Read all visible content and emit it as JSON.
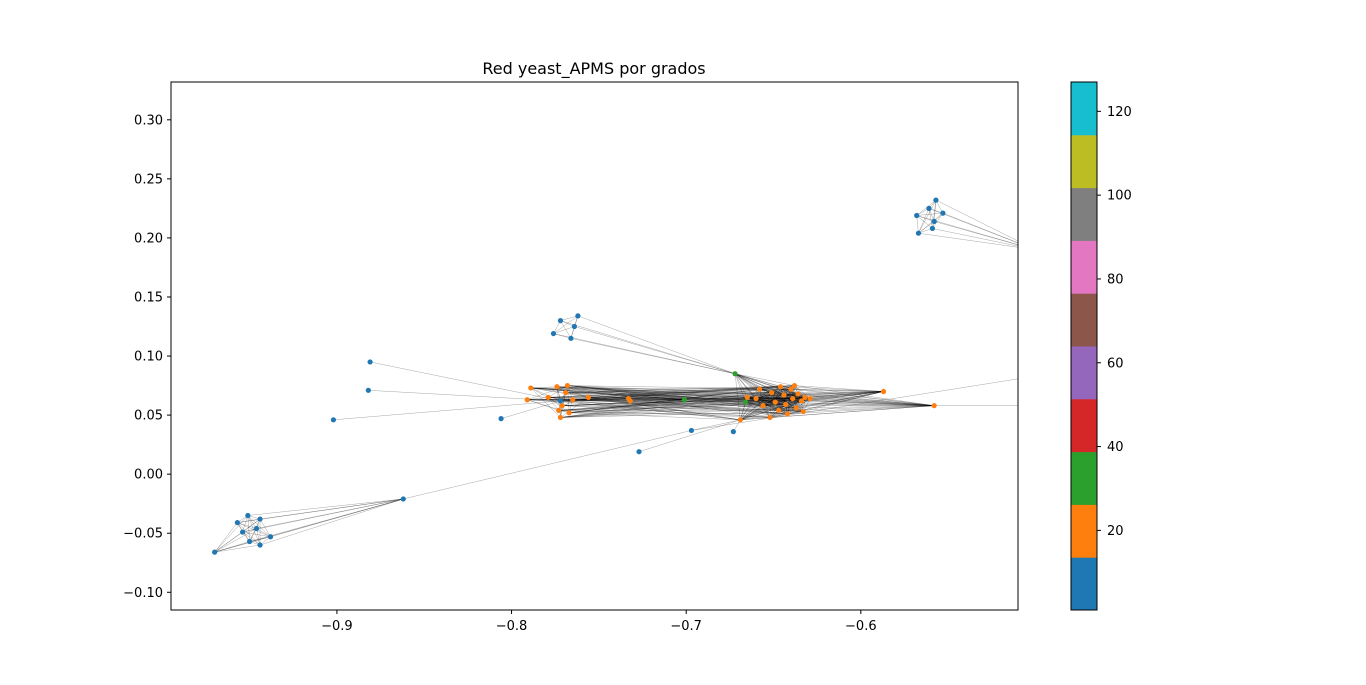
{
  "chart_data": {
    "type": "scatter",
    "subtype": "network-graph",
    "title": "Red yeast_APMS por grados",
    "xlabel": "",
    "ylabel": "",
    "xlim": [
      -0.995,
      -0.51
    ],
    "ylim": [
      -0.115,
      0.332
    ],
    "x_ticks": [
      {
        "value": -0.9,
        "label": "−0.9"
      },
      {
        "value": -0.8,
        "label": "−0.8"
      },
      {
        "value": -0.7,
        "label": "−0.7"
      },
      {
        "value": -0.6,
        "label": "−0.6"
      }
    ],
    "y_ticks": [
      {
        "value": -0.1,
        "label": "−0.10"
      },
      {
        "value": -0.05,
        "label": "−0.05"
      },
      {
        "value": 0.0,
        "label": "0.00"
      },
      {
        "value": 0.05,
        "label": "0.05"
      },
      {
        "value": 0.1,
        "label": "0.10"
      },
      {
        "value": 0.15,
        "label": "0.15"
      },
      {
        "value": 0.2,
        "label": "0.20"
      },
      {
        "value": 0.25,
        "label": "0.25"
      },
      {
        "value": 0.3,
        "label": "0.30"
      }
    ],
    "grid": false,
    "colormap": "tab10",
    "colorbar": {
      "range": [
        1,
        127
      ],
      "ticks": [
        {
          "value": 20,
          "label": "20"
        },
        {
          "value": 40,
          "label": "40"
        },
        {
          "value": 60,
          "label": "60"
        },
        {
          "value": 80,
          "label": "80"
        },
        {
          "value": 100,
          "label": "100"
        },
        {
          "value": 120,
          "label": "120"
        }
      ],
      "colors": [
        "#1f77b4",
        "#ff7f0e",
        "#2ca02c",
        "#d62728",
        "#9467bd",
        "#8c564b",
        "#e377c2",
        "#7f7f7f",
        "#bcbd22",
        "#17becf"
      ]
    },
    "node_colors": {
      "low": "#1f77b4",
      "mid": "#ff7f0e",
      "high": "#2ca02c"
    },
    "edge_color": "#000000",
    "nodes": [
      {
        "x": -0.97,
        "y": -0.066,
        "c": "low"
      },
      {
        "x": -0.957,
        "y": -0.041,
        "c": "low"
      },
      {
        "x": -0.951,
        "y": -0.035,
        "c": "low"
      },
      {
        "x": -0.954,
        "y": -0.049,
        "c": "low"
      },
      {
        "x": -0.946,
        "y": -0.046,
        "c": "low"
      },
      {
        "x": -0.944,
        "y": -0.038,
        "c": "low"
      },
      {
        "x": -0.938,
        "y": -0.053,
        "c": "low"
      },
      {
        "x": -0.95,
        "y": -0.057,
        "c": "low"
      },
      {
        "x": -0.944,
        "y": -0.06,
        "c": "low"
      },
      {
        "x": -0.862,
        "y": -0.021,
        "c": "low"
      },
      {
        "x": -0.902,
        "y": 0.046,
        "c": "low"
      },
      {
        "x": -0.881,
        "y": 0.095,
        "c": "low"
      },
      {
        "x": -0.882,
        "y": 0.071,
        "c": "low"
      },
      {
        "x": -0.806,
        "y": 0.047,
        "c": "low"
      },
      {
        "x": -0.727,
        "y": 0.019,
        "c": "low"
      },
      {
        "x": -0.697,
        "y": 0.037,
        "c": "low"
      },
      {
        "x": -0.673,
        "y": 0.036,
        "c": "low"
      },
      {
        "x": -0.776,
        "y": 0.119,
        "c": "low"
      },
      {
        "x": -0.772,
        "y": 0.13,
        "c": "low"
      },
      {
        "x": -0.762,
        "y": 0.134,
        "c": "low"
      },
      {
        "x": -0.764,
        "y": 0.125,
        "c": "low"
      },
      {
        "x": -0.766,
        "y": 0.115,
        "c": "low"
      },
      {
        "x": -0.568,
        "y": 0.219,
        "c": "low"
      },
      {
        "x": -0.567,
        "y": 0.204,
        "c": "low"
      },
      {
        "x": -0.561,
        "y": 0.225,
        "c": "low"
      },
      {
        "x": -0.557,
        "y": 0.232,
        "c": "low"
      },
      {
        "x": -0.553,
        "y": 0.221,
        "c": "low"
      },
      {
        "x": -0.558,
        "y": 0.214,
        "c": "low"
      },
      {
        "x": -0.559,
        "y": 0.208,
        "c": "low"
      },
      {
        "x": -0.772,
        "y": 0.062,
        "c": "low"
      },
      {
        "x": -0.791,
        "y": 0.063,
        "c": "mid"
      },
      {
        "x": -0.789,
        "y": 0.073,
        "c": "mid"
      },
      {
        "x": -0.779,
        "y": 0.065,
        "c": "mid"
      },
      {
        "x": -0.774,
        "y": 0.074,
        "c": "mid"
      },
      {
        "x": -0.768,
        "y": 0.075,
        "c": "mid"
      },
      {
        "x": -0.769,
        "y": 0.069,
        "c": "mid"
      },
      {
        "x": -0.773,
        "y": 0.054,
        "c": "mid"
      },
      {
        "x": -0.772,
        "y": 0.048,
        "c": "mid"
      },
      {
        "x": -0.767,
        "y": 0.052,
        "c": "mid"
      },
      {
        "x": -0.771,
        "y": 0.058,
        "c": "mid"
      },
      {
        "x": -0.765,
        "y": 0.063,
        "c": "mid"
      },
      {
        "x": -0.756,
        "y": 0.065,
        "c": "mid"
      },
      {
        "x": -0.733,
        "y": 0.064,
        "c": "mid"
      },
      {
        "x": -0.732,
        "y": 0.062,
        "c": "mid"
      },
      {
        "x": -0.669,
        "y": 0.046,
        "c": "mid"
      },
      {
        "x": -0.665,
        "y": 0.065,
        "c": "mid"
      },
      {
        "x": -0.66,
        "y": 0.064,
        "c": "mid"
      },
      {
        "x": -0.658,
        "y": 0.072,
        "c": "mid"
      },
      {
        "x": -0.656,
        "y": 0.058,
        "c": "mid"
      },
      {
        "x": -0.652,
        "y": 0.048,
        "c": "mid"
      },
      {
        "x": -0.651,
        "y": 0.069,
        "c": "mid"
      },
      {
        "x": -0.649,
        "y": 0.061,
        "c": "mid"
      },
      {
        "x": -0.647,
        "y": 0.054,
        "c": "mid"
      },
      {
        "x": -0.646,
        "y": 0.074,
        "c": "mid"
      },
      {
        "x": -0.644,
        "y": 0.067,
        "c": "mid"
      },
      {
        "x": -0.643,
        "y": 0.059,
        "c": "mid"
      },
      {
        "x": -0.642,
        "y": 0.051,
        "c": "mid"
      },
      {
        "x": -0.64,
        "y": 0.072,
        "c": "mid"
      },
      {
        "x": -0.639,
        "y": 0.064,
        "c": "mid"
      },
      {
        "x": -0.638,
        "y": 0.075,
        "c": "mid"
      },
      {
        "x": -0.637,
        "y": 0.056,
        "c": "mid"
      },
      {
        "x": -0.636,
        "y": 0.068,
        "c": "mid"
      },
      {
        "x": -0.634,
        "y": 0.062,
        "c": "mid"
      },
      {
        "x": -0.633,
        "y": 0.053,
        "c": "mid"
      },
      {
        "x": -0.632,
        "y": 0.065,
        "c": "mid"
      },
      {
        "x": -0.629,
        "y": 0.064,
        "c": "mid"
      },
      {
        "x": -0.587,
        "y": 0.07,
        "c": "mid"
      },
      {
        "x": -0.558,
        "y": 0.058,
        "c": "mid"
      },
      {
        "x": -0.701,
        "y": 0.063,
        "c": "high"
      },
      {
        "x": -0.672,
        "y": 0.085,
        "c": "high"
      },
      {
        "x": -0.666,
        "y": 0.061,
        "c": "high"
      }
    ]
  }
}
